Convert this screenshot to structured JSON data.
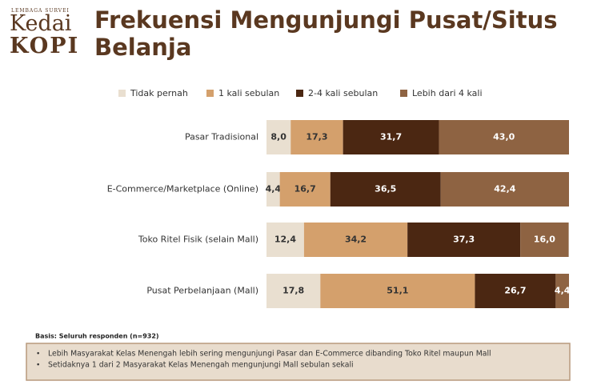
{
  "logo": {
    "top": "LEMBAGA SURVEI",
    "line1": "Kedai",
    "line2": "KOPI"
  },
  "chart_data": {
    "type": "stacked-bar-horizontal",
    "title": "Frekuensi Mengunjungi Pusat/Situs Belanja",
    "categories": [
      "Pasar Tradisional",
      "E-Commerce/Marketplace (Online)",
      "Toko Ritel Fisik (selain Mall)",
      "Pusat Perbelanjaan (Mall)"
    ],
    "series": [
      {
        "name": "Tidak pernah",
        "color": "#e9dfd0",
        "values": [
          8.0,
          4.4,
          12.4,
          17.8
        ],
        "value_labels": [
          "8,0",
          "4,4",
          "12,4",
          "17,8"
        ]
      },
      {
        "name": "1 kali sebulan",
        "color": "#d4a06c",
        "values": [
          17.3,
          16.7,
          34.2,
          51.1
        ],
        "value_labels": [
          "17,3",
          "16,7",
          "34,2",
          "51,1"
        ]
      },
      {
        "name": "2-4 kali sebulan",
        "color": "#4b2712",
        "values": [
          31.7,
          36.5,
          37.3,
          26.7
        ],
        "value_labels": [
          "31,7",
          "36,5",
          "37,3",
          "26,7"
        ]
      },
      {
        "name": "Lebih dari 4 kali",
        "color": "#8e6342",
        "values": [
          43.0,
          42.4,
          16.0,
          4.4
        ],
        "value_labels": [
          "43,0",
          "42,4",
          "16,0",
          "4,4"
        ]
      }
    ],
    "xlim": [
      0,
      100
    ],
    "basis": "Basis: Seluruh responden (n=932)",
    "notes": [
      "Lebih Masyarakat Kelas Menengah lebih sering mengunjungi Pasar dan E-Commerce dibanding Toko Ritel maupun Mall",
      "Setidaknya 1 dari 2 Masyarakat Kelas Menengah mengunjungi Mall sebulan sekali"
    ]
  }
}
